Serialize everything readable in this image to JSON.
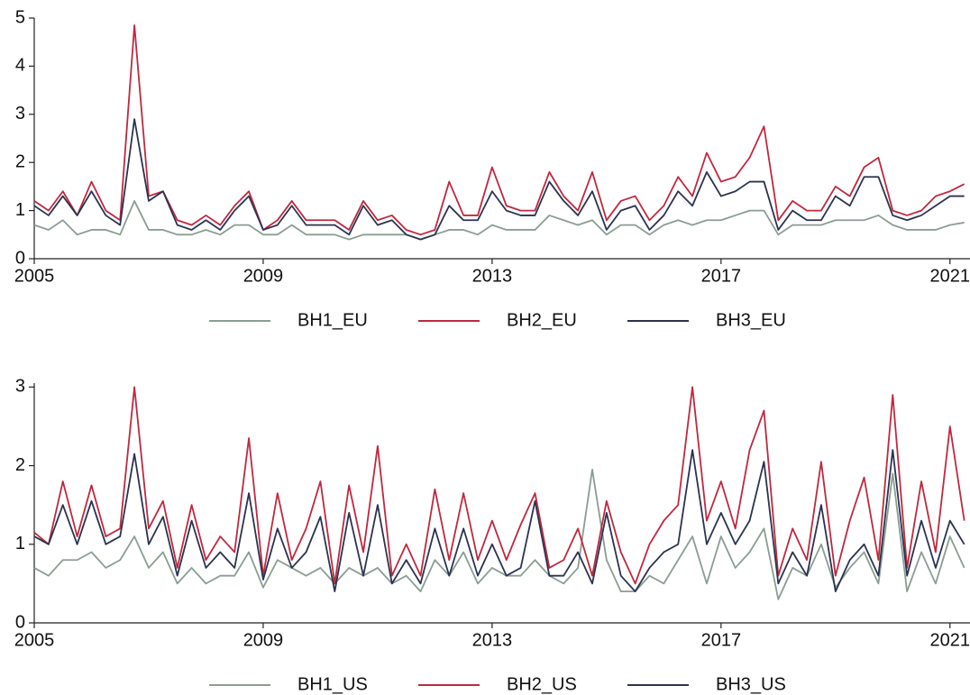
{
  "chart_data": [
    {
      "type": "line",
      "x": [
        2005,
        2005.25,
        2005.5,
        2005.75,
        2006,
        2006.25,
        2006.5,
        2006.75,
        2007,
        2007.25,
        2007.5,
        2007.75,
        2008,
        2008.25,
        2008.5,
        2008.75,
        2009,
        2009.25,
        2009.5,
        2009.75,
        2010,
        2010.25,
        2010.5,
        2010.75,
        2011,
        2011.25,
        2011.5,
        2011.75,
        2012,
        2012.25,
        2012.5,
        2012.75,
        2013,
        2013.25,
        2013.5,
        2013.75,
        2014,
        2014.25,
        2014.5,
        2014.75,
        2015,
        2015.25,
        2015.5,
        2015.75,
        2016,
        2016.25,
        2016.5,
        2016.75,
        2017,
        2017.25,
        2017.5,
        2017.75,
        2018,
        2018.25,
        2018.5,
        2018.75,
        2019,
        2019.25,
        2019.5,
        2019.75,
        2020,
        2020.25,
        2020.5,
        2020.75,
        2021,
        2021.25
      ],
      "xlim": [
        2005,
        2021.35
      ],
      "xticks": [
        2005,
        2009,
        2013,
        2017,
        2021
      ],
      "ylim": [
        0,
        5
      ],
      "yticks": [
        0,
        1,
        2,
        3,
        4,
        5
      ],
      "series": [
        {
          "name": "BH1_EU",
          "color": "#8a9e92",
          "values": [
            0.7,
            0.6,
            0.8,
            0.5,
            0.6,
            0.6,
            0.5,
            1.2,
            0.6,
            0.6,
            0.5,
            0.5,
            0.6,
            0.5,
            0.7,
            0.7,
            0.5,
            0.5,
            0.7,
            0.5,
            0.5,
            0.5,
            0.4,
            0.5,
            0.5,
            0.5,
            0.5,
            0.4,
            0.5,
            0.6,
            0.6,
            0.5,
            0.7,
            0.6,
            0.6,
            0.6,
            0.9,
            0.8,
            0.7,
            0.8,
            0.5,
            0.7,
            0.7,
            0.5,
            0.7,
            0.8,
            0.7,
            0.8,
            0.8,
            0.9,
            1.0,
            1.0,
            0.5,
            0.7,
            0.7,
            0.7,
            0.8,
            0.8,
            0.8,
            0.9,
            0.7,
            0.6,
            0.6,
            0.6,
            0.7,
            0.75
          ]
        },
        {
          "name": "BH2_EU",
          "color": "#c0283f",
          "values": [
            1.2,
            1.0,
            1.4,
            0.9,
            1.6,
            1.0,
            0.8,
            4.85,
            1.3,
            1.4,
            0.8,
            0.7,
            0.9,
            0.7,
            1.1,
            1.4,
            0.6,
            0.8,
            1.2,
            0.8,
            0.8,
            0.8,
            0.6,
            1.2,
            0.8,
            0.9,
            0.6,
            0.5,
            0.6,
            1.6,
            0.9,
            0.9,
            1.9,
            1.1,
            1.0,
            1.0,
            1.8,
            1.3,
            1.0,
            1.8,
            0.8,
            1.2,
            1.3,
            0.8,
            1.1,
            1.7,
            1.3,
            2.2,
            1.6,
            1.7,
            2.1,
            2.75,
            0.8,
            1.2,
            1.0,
            1.0,
            1.5,
            1.3,
            1.9,
            2.1,
            1.0,
            0.9,
            1.0,
            1.3,
            1.4,
            1.55
          ]
        },
        {
          "name": "BH3_EU",
          "color": "#2b3350",
          "values": [
            1.1,
            0.9,
            1.3,
            0.9,
            1.4,
            0.9,
            0.7,
            2.9,
            1.2,
            1.4,
            0.7,
            0.6,
            0.8,
            0.6,
            1.0,
            1.3,
            0.6,
            0.7,
            1.1,
            0.7,
            0.7,
            0.7,
            0.5,
            1.1,
            0.7,
            0.8,
            0.5,
            0.4,
            0.5,
            1.1,
            0.8,
            0.8,
            1.4,
            1.0,
            0.9,
            0.9,
            1.6,
            1.2,
            0.9,
            1.4,
            0.6,
            1.0,
            1.1,
            0.6,
            0.9,
            1.4,
            1.1,
            1.8,
            1.3,
            1.4,
            1.6,
            1.6,
            0.6,
            1.0,
            0.8,
            0.8,
            1.3,
            1.1,
            1.7,
            1.7,
            0.9,
            0.8,
            0.9,
            1.1,
            1.3,
            1.3
          ]
        }
      ]
    },
    {
      "type": "line",
      "x": [
        2005,
        2005.25,
        2005.5,
        2005.75,
        2006,
        2006.25,
        2006.5,
        2006.75,
        2007,
        2007.25,
        2007.5,
        2007.75,
        2008,
        2008.25,
        2008.5,
        2008.75,
        2009,
        2009.25,
        2009.5,
        2009.75,
        2010,
        2010.25,
        2010.5,
        2010.75,
        2011,
        2011.25,
        2011.5,
        2011.75,
        2012,
        2012.25,
        2012.5,
        2012.75,
        2013,
        2013.25,
        2013.5,
        2013.75,
        2014,
        2014.25,
        2014.5,
        2014.75,
        2015,
        2015.25,
        2015.5,
        2015.75,
        2016,
        2016.25,
        2016.5,
        2016.75,
        2017,
        2017.25,
        2017.5,
        2017.75,
        2018,
        2018.25,
        2018.5,
        2018.75,
        2019,
        2019.25,
        2019.5,
        2019.75,
        2020,
        2020.25,
        2020.5,
        2020.75,
        2021,
        2021.25
      ],
      "xlim": [
        2005,
        2021.35
      ],
      "xticks": [
        2005,
        2009,
        2013,
        2017,
        2021
      ],
      "ylim": [
        0,
        3.05
      ],
      "yticks": [
        0,
        1,
        2,
        3
      ],
      "series": [
        {
          "name": "BH1_US",
          "color": "#8a9e92",
          "values": [
            0.7,
            0.6,
            0.8,
            0.8,
            0.9,
            0.7,
            0.8,
            1.1,
            0.7,
            0.9,
            0.5,
            0.7,
            0.5,
            0.6,
            0.6,
            0.9,
            0.45,
            0.8,
            0.7,
            0.6,
            0.7,
            0.5,
            0.7,
            0.6,
            0.7,
            0.5,
            0.6,
            0.4,
            0.8,
            0.6,
            0.9,
            0.5,
            0.7,
            0.6,
            0.6,
            0.8,
            0.6,
            0.5,
            0.7,
            1.95,
            0.8,
            0.4,
            0.4,
            0.6,
            0.5,
            0.8,
            1.1,
            0.5,
            1.1,
            0.7,
            0.9,
            1.2,
            0.3,
            0.7,
            0.6,
            1.0,
            0.45,
            0.7,
            0.9,
            0.5,
            1.9,
            0.4,
            0.9,
            0.5,
            1.1,
            0.7
          ]
        },
        {
          "name": "BH2_US",
          "color": "#c0283f",
          "values": [
            1.15,
            1.0,
            1.8,
            1.1,
            1.75,
            1.1,
            1.2,
            3.0,
            1.2,
            1.55,
            0.7,
            1.5,
            0.8,
            1.1,
            0.9,
            2.35,
            0.6,
            1.65,
            0.8,
            1.2,
            1.8,
            0.5,
            1.75,
            0.9,
            2.25,
            0.6,
            1.0,
            0.6,
            1.7,
            0.8,
            1.65,
            0.8,
            1.3,
            0.8,
            1.25,
            1.65,
            0.7,
            0.8,
            1.2,
            0.6,
            1.55,
            0.9,
            0.5,
            1.0,
            1.3,
            1.5,
            3.0,
            1.3,
            1.8,
            1.2,
            2.2,
            2.7,
            0.6,
            1.2,
            0.8,
            2.05,
            0.6,
            1.3,
            1.85,
            0.8,
            2.9,
            0.7,
            1.8,
            0.9,
            2.5,
            1.3
          ]
        },
        {
          "name": "BH3_US",
          "color": "#2b3350",
          "values": [
            1.1,
            1.0,
            1.5,
            1.0,
            1.55,
            1.0,
            1.1,
            2.15,
            1.0,
            1.35,
            0.6,
            1.3,
            0.7,
            0.9,
            0.7,
            1.65,
            0.55,
            1.2,
            0.7,
            0.9,
            1.35,
            0.4,
            1.4,
            0.6,
            1.5,
            0.5,
            0.8,
            0.5,
            1.2,
            0.6,
            1.2,
            0.6,
            1.0,
            0.6,
            0.7,
            1.55,
            0.6,
            0.6,
            0.9,
            0.5,
            1.4,
            0.6,
            0.4,
            0.7,
            0.9,
            1.0,
            2.2,
            1.0,
            1.4,
            1.0,
            1.3,
            2.05,
            0.5,
            0.9,
            0.6,
            1.5,
            0.4,
            0.8,
            1.0,
            0.6,
            2.2,
            0.6,
            1.3,
            0.7,
            1.3,
            1.0
          ]
        }
      ]
    }
  ]
}
